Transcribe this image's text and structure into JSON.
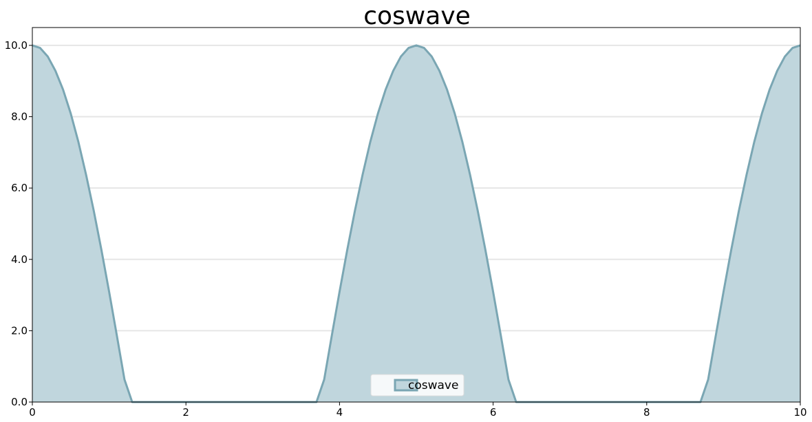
{
  "chart_data": {
    "type": "area",
    "title": "coswave",
    "xlabel": "",
    "ylabel": "",
    "xlim": [
      0,
      10
    ],
    "ylim": [
      0,
      10.5
    ],
    "x_ticks": [
      0,
      2,
      4,
      6,
      8,
      10
    ],
    "x_tick_labels": [
      "0",
      "2",
      "4",
      "6",
      "8",
      "10"
    ],
    "y_ticks": [
      0,
      2,
      4,
      6,
      8,
      10
    ],
    "y_tick_labels": [
      "0.0",
      "2.0",
      "4.0",
      "6.0",
      "8.0",
      "10.0"
    ],
    "grid": "horizontal",
    "legend_position": "bottom-center",
    "series": [
      {
        "name": "coswave",
        "color": "#7aa6b3",
        "fill_color": "#c0d6dd",
        "x": [
          0.0,
          0.1,
          0.2,
          0.3,
          0.4,
          0.5,
          0.6,
          0.7,
          0.8,
          0.9,
          1.0,
          1.1,
          1.2,
          1.3,
          1.4,
          1.5,
          1.6,
          1.7,
          1.8,
          1.9,
          2.0,
          2.1,
          2.2,
          2.3,
          2.4,
          2.5,
          2.6,
          2.7,
          2.8,
          2.9,
          3.0,
          3.1,
          3.2,
          3.3,
          3.4,
          3.5,
          3.6,
          3.7,
          3.8,
          3.9,
          4.0,
          4.1,
          4.2,
          4.3,
          4.4,
          4.5,
          4.6,
          4.7,
          4.8,
          4.9,
          5.0,
          5.1,
          5.2,
          5.3,
          5.4,
          5.5,
          5.6,
          5.7,
          5.8,
          5.9,
          6.0,
          6.1,
          6.2,
          6.3,
          6.4,
          6.5,
          6.6,
          6.7,
          6.8,
          6.9,
          7.0,
          7.1,
          7.2,
          7.3,
          7.4,
          7.5,
          7.6,
          7.7,
          7.8,
          7.9,
          8.0,
          8.1,
          8.2,
          8.3,
          8.4,
          8.5,
          8.6,
          8.7,
          8.8,
          8.9,
          9.0,
          9.1,
          9.2,
          9.3,
          9.4,
          9.5,
          9.6,
          9.7,
          9.8,
          9.9,
          10.0
        ],
        "y": [
          10.0,
          9.93,
          9.69,
          9.29,
          8.76,
          8.09,
          7.29,
          6.37,
          5.36,
          4.26,
          3.09,
          1.87,
          0.63,
          0.0,
          0.0,
          0.0,
          0.0,
          0.0,
          0.0,
          0.0,
          0.0,
          0.0,
          0.0,
          0.0,
          0.0,
          0.0,
          0.0,
          0.0,
          0.0,
          0.0,
          0.0,
          0.0,
          0.0,
          0.0,
          0.0,
          0.0,
          0.0,
          0.0,
          0.63,
          1.87,
          3.09,
          4.26,
          5.36,
          6.37,
          7.29,
          8.09,
          8.76,
          9.29,
          9.69,
          9.93,
          10.0,
          9.93,
          9.69,
          9.29,
          8.76,
          8.09,
          7.29,
          6.37,
          5.36,
          4.26,
          3.09,
          1.87,
          0.63,
          0.0,
          0.0,
          0.0,
          0.0,
          0.0,
          0.0,
          0.0,
          0.0,
          0.0,
          0.0,
          0.0,
          0.0,
          0.0,
          0.0,
          0.0,
          0.0,
          0.0,
          0.0,
          0.0,
          0.0,
          0.0,
          0.0,
          0.0,
          0.0,
          0.0,
          0.63,
          1.87,
          3.09,
          4.26,
          5.36,
          6.37,
          7.29,
          8.09,
          8.76,
          9.29,
          9.69,
          9.93,
          10.0
        ]
      }
    ]
  }
}
